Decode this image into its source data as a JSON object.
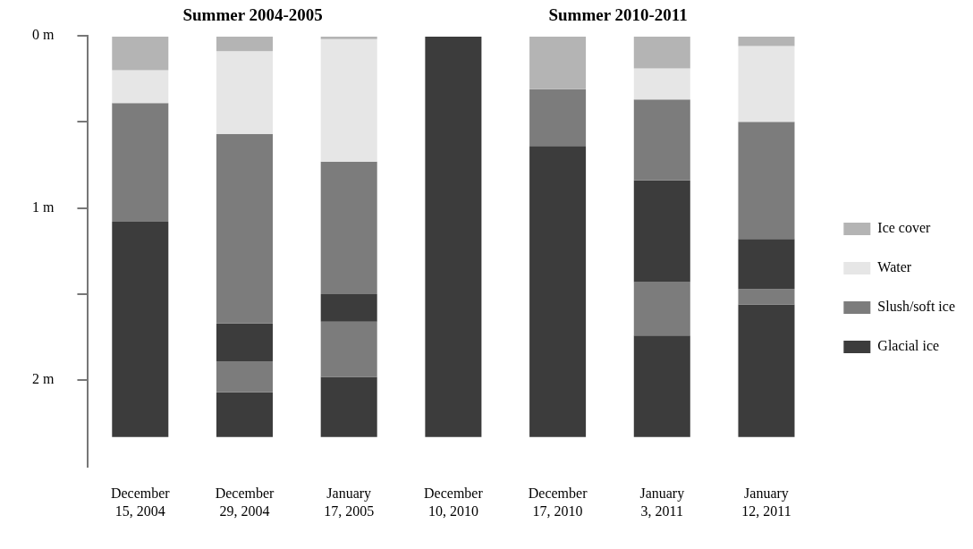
{
  "chart_data": {
    "type": "bar",
    "stacked": true,
    "categories": [
      "December 15, 2004",
      "December 29, 2004",
      "January 17, 2005",
      "December 10, 2010",
      "December 17, 2010",
      "January 3, 2011",
      "January 12, 2011"
    ],
    "series": [
      {
        "name": "Ice cover",
        "color": "#b4b4b4",
        "values": [
          0.2,
          0.09,
          0.02,
          null,
          0.31,
          0.19,
          0.06
        ]
      },
      {
        "name": "Water",
        "color": "#e6e6e6",
        "values": [
          0.19,
          0.48,
          0.71,
          null,
          null,
          0.18,
          0.44
        ]
      },
      {
        "name": "Slush/soft ice",
        "color": "#7c7c7c",
        "values": [
          0.69,
          1.1,
          0.77,
          null,
          0.33,
          0.47,
          0.68
        ]
      },
      {
        "name": "Glacial ice",
        "color": "#3c3c3c",
        "values": [
          1.25,
          0.22,
          0.16,
          2.33,
          1.69,
          0.59,
          0.29
        ]
      },
      {
        "color": "#7c7c7c",
        "values": [
          null,
          0.18,
          0.32,
          null,
          null,
          0.31,
          0.09
        ]
      },
      {
        "color": "#3c3c3c",
        "values": [
          null,
          0.26,
          0.35,
          null,
          null,
          0.59,
          0.77
        ]
      }
    ],
    "ylim": [
      2.5,
      0
    ],
    "yticks": [
      {
        "value": 0,
        "label": "0 m"
      },
      {
        "value": 0.5,
        "label": null
      },
      {
        "value": 1,
        "label": "1 m"
      },
      {
        "value": 1.5,
        "label": null
      },
      {
        "value": 2,
        "label": "2 m"
      }
    ],
    "annotations": [
      "Summer 2004-2005",
      "Summer 2010-2011"
    ],
    "legend": "right",
    "grid": false
  }
}
